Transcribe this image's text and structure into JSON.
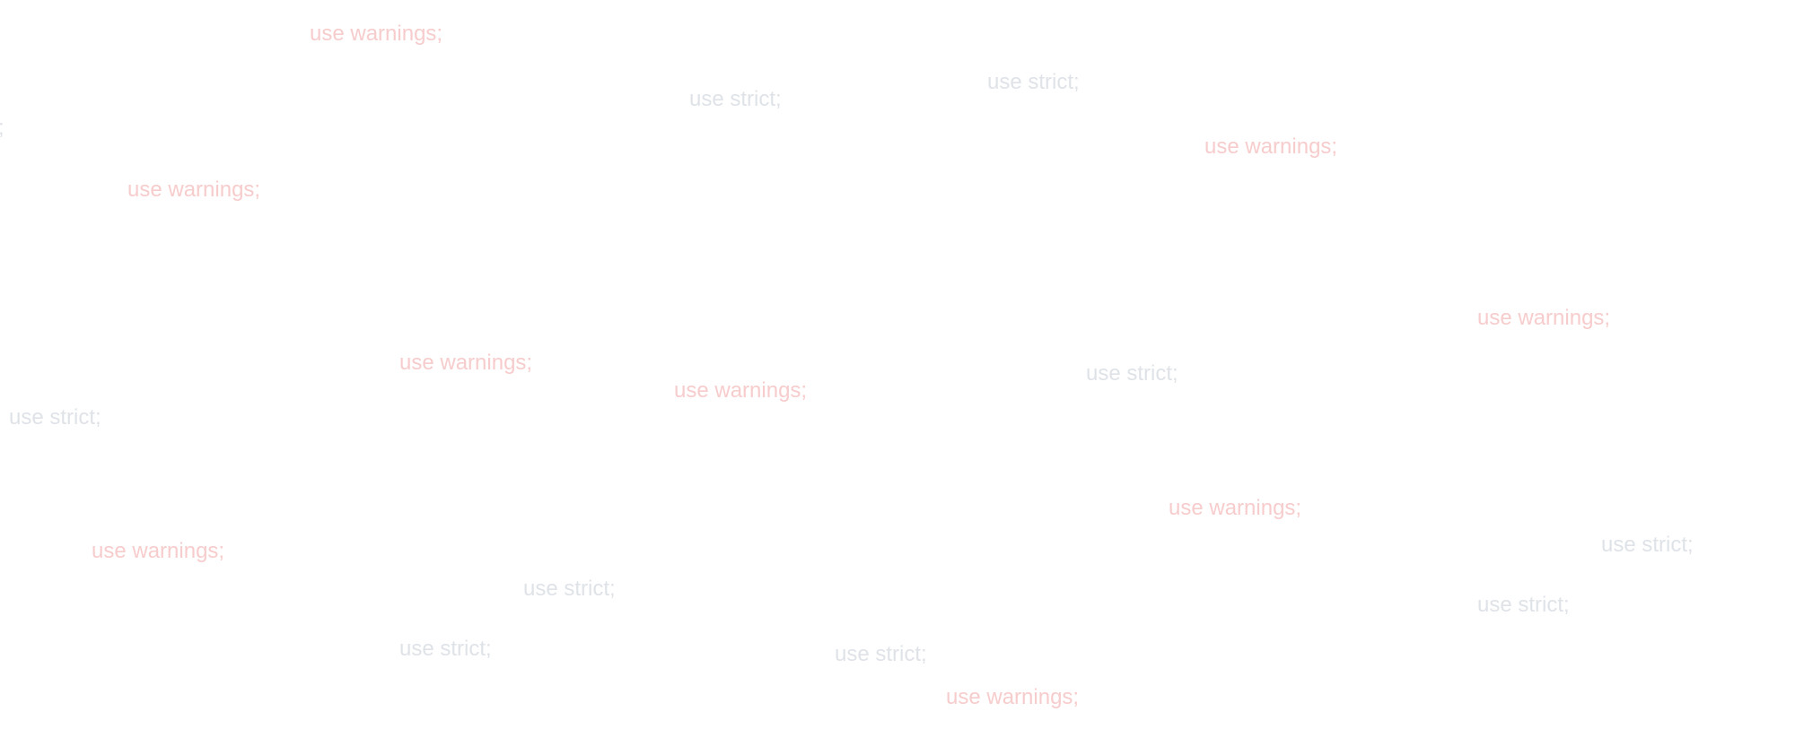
{
  "colors": {
    "background": "#ffffff",
    "strict_text": "#dfe3e8",
    "warnings_text": "#f7cccc"
  },
  "phrases": [
    {
      "text": "use warnings;",
      "kind": "warnings"
    },
    {
      "text": "use strict;",
      "kind": "strict"
    },
    {
      "text": "use strict;",
      "kind": "strict"
    },
    {
      "text": ";",
      "kind": "strict"
    },
    {
      "text": "use warnings;",
      "kind": "warnings"
    },
    {
      "text": "use warnings;",
      "kind": "warnings"
    },
    {
      "text": "use warnings;",
      "kind": "warnings"
    },
    {
      "text": "use warnings;",
      "kind": "warnings"
    },
    {
      "text": "use warnings;",
      "kind": "warnings"
    },
    {
      "text": "use strict;",
      "kind": "strict"
    },
    {
      "text": "use strict;",
      "kind": "strict"
    },
    {
      "text": "use warnings;",
      "kind": "warnings"
    },
    {
      "text": "use warnings;",
      "kind": "warnings"
    },
    {
      "text": "use strict;",
      "kind": "strict"
    },
    {
      "text": "use strict;",
      "kind": "strict"
    },
    {
      "text": "use strict;",
      "kind": "strict"
    },
    {
      "text": "use strict;",
      "kind": "strict"
    },
    {
      "text": "use strict;",
      "kind": "strict"
    },
    {
      "text": "use warnings;",
      "kind": "warnings"
    }
  ]
}
